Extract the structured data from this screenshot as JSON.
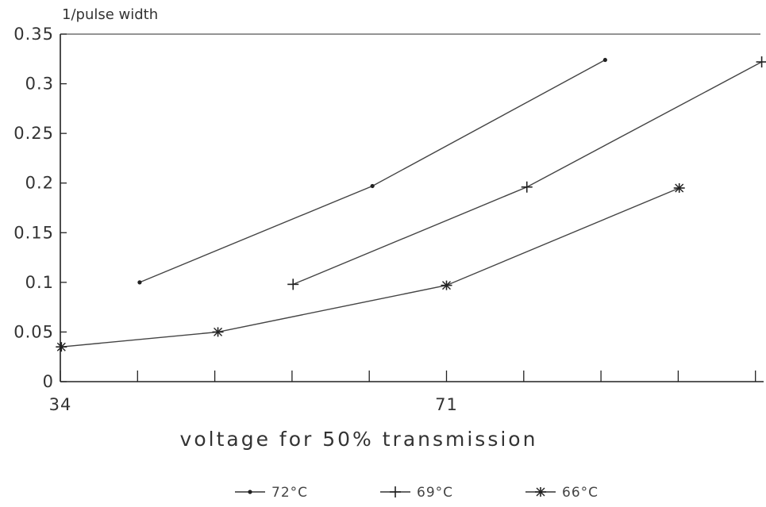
{
  "chart_data": {
    "type": "line",
    "title": "",
    "xlabel": "voltage for 50% transmission",
    "ylabel": "1/pulse width",
    "x_tick_labels": [
      {
        "x": 34,
        "label": "34"
      },
      {
        "x": 71,
        "label": "71"
      }
    ],
    "x_minor_ticks": [
      41.4,
      48.8,
      56.2,
      63.6,
      78.4,
      85.8,
      93.2,
      100.6
    ],
    "xlim": [
      34,
      100.6
    ],
    "ylim": [
      0,
      0.35
    ],
    "y_ticks": [
      0,
      0.05,
      0.1,
      0.15,
      0.2,
      0.25,
      0.3,
      0.35
    ],
    "y_tick_labels": [
      "0",
      "0.05",
      "0.1",
      "0.15",
      "0.2",
      "0.25",
      "0.3",
      "0.35"
    ],
    "grid": false,
    "legend_position": "bottom",
    "series": [
      {
        "name": "72°C",
        "marker": "dot",
        "points": [
          {
            "x": 41.6,
            "y": 0.1
          },
          {
            "x": 63.9,
            "y": 0.197
          },
          {
            "x": 86.2,
            "y": 0.324
          }
        ]
      },
      {
        "name": "69°C",
        "marker": "plus",
        "points": [
          {
            "x": 56.3,
            "y": 0.098
          },
          {
            "x": 78.7,
            "y": 0.196
          },
          {
            "x": 101.2,
            "y": 0.322
          }
        ]
      },
      {
        "name": "66°C",
        "marker": "star",
        "points": [
          {
            "x": 34.1,
            "y": 0.035
          },
          {
            "x": 49.1,
            "y": 0.05
          },
          {
            "x": 71.0,
            "y": 0.097
          },
          {
            "x": 93.3,
            "y": 0.195
          }
        ]
      }
    ]
  }
}
